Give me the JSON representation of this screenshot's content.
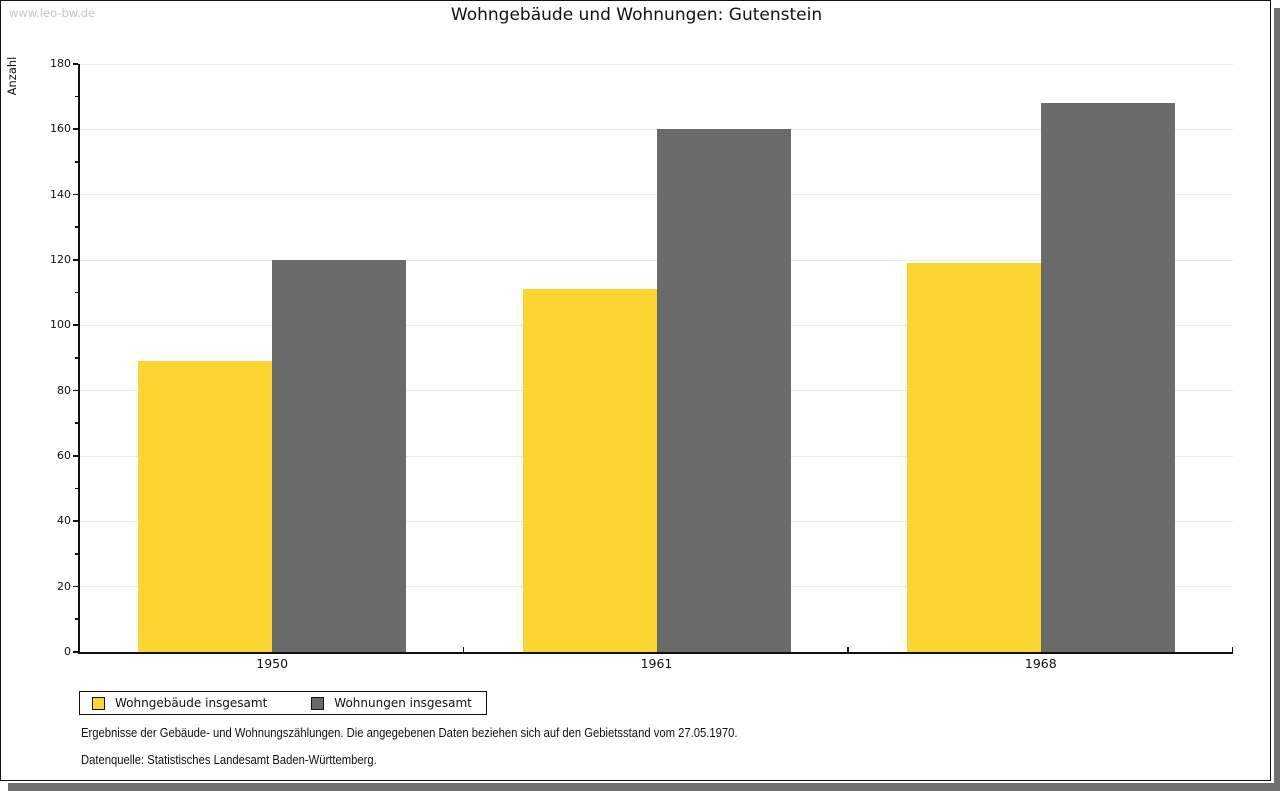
{
  "page": {
    "watermark": "www.leo-bw.de",
    "title": "Wohngebäude und Wohnungen: Gutenstein",
    "footnote1": "Ergebnisse der Gebäude- und Wohnungszählungen. Die angegebenen Daten beziehen sich auf den Gebietsstand vom 27.05.1970.",
    "footnote2": "Datenquelle: Statistisches Landesamt Baden-Württemberg."
  },
  "chart_data": {
    "type": "bar",
    "title": "Wohngebäude und Wohnungen: Gutenstein",
    "ylabel": "Anzahl",
    "xlabel": "",
    "categories": [
      "1950",
      "1961",
      "1968"
    ],
    "series": [
      {
        "name": "Wohngebäude insgesamt",
        "color": "#FCD530",
        "values": [
          89,
          111,
          119
        ]
      },
      {
        "name": "Wohnungen insgesamt",
        "color": "#6A6A6A",
        "values": [
          120,
          160,
          168
        ]
      }
    ],
    "ylim": [
      0,
      180
    ],
    "ytick_step": 20,
    "ytick_minor_step": 10,
    "grid": "horizontal-major",
    "legend_position": "bottom-left"
  },
  "colors": {
    "gridline": "#E9E9E9",
    "axis": "#111111",
    "page_shadow": "#6F6F6F",
    "watermark_text": "#C6C6C6"
  }
}
